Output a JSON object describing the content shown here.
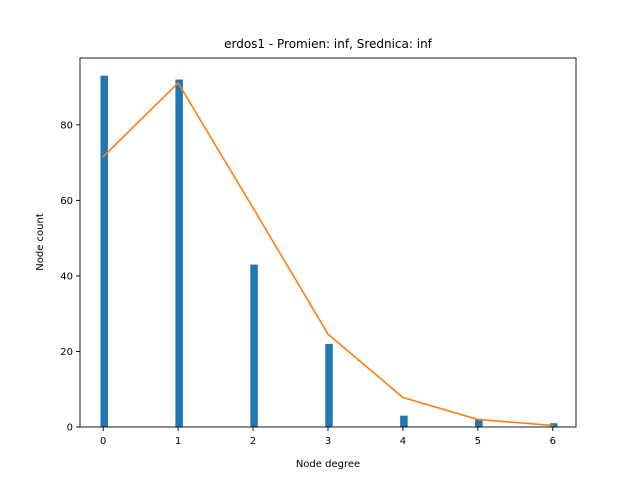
{
  "chart_data": {
    "type": "bar",
    "title": "erdos1 - Promien: inf, Srednica: inf",
    "xlabel": "Node degree",
    "ylabel": "Node count",
    "xlim": [
      -0.31,
      6.31
    ],
    "ylim": [
      0,
      97.7
    ],
    "xticks": [
      0,
      1,
      2,
      3,
      4,
      5,
      6
    ],
    "yticks": [
      0,
      20,
      40,
      60,
      80
    ],
    "grid": false,
    "legend": "none",
    "series": [
      {
        "type": "bar",
        "color": "#1f77b4",
        "x": [
          0,
          1,
          2,
          3,
          4,
          5,
          6
        ],
        "values": [
          93,
          92,
          43,
          22,
          3,
          2,
          1
        ]
      },
      {
        "type": "line",
        "color": "#ff7f0e",
        "x": [
          0,
          1,
          2,
          3,
          4,
          5,
          6
        ],
        "values": [
          71.6,
          91.1,
          58.0,
          24.6,
          7.8,
          2.0,
          0.4
        ]
      }
    ]
  }
}
